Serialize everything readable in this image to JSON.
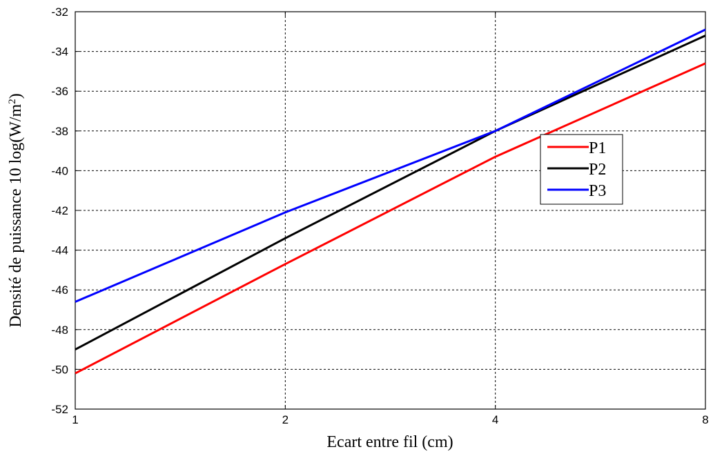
{
  "chart_data": {
    "type": "line",
    "x": [
      1,
      2,
      4,
      8
    ],
    "x_ticks": [
      "1",
      "2",
      "4",
      "8"
    ],
    "xlim": [
      1,
      8
    ],
    "xscale": "log",
    "ylim": [
      -52,
      -32
    ],
    "y_ticks": [
      "-52",
      "-50",
      "-48",
      "-46",
      "-44",
      "-42",
      "-40",
      "-38",
      "-36",
      "-34",
      "-32"
    ],
    "xlabel": "Ecart entre fil (cm)",
    "ylabel_main": "Densité de puissance 10 log(W/m",
    "ylabel_sup": "2",
    "ylabel_tail": ")",
    "grid": true,
    "legend_position": "right",
    "series": [
      {
        "name": "P1",
        "color": "#ff0000",
        "values": [
          -50.2,
          -44.7,
          -39.3,
          -34.6
        ]
      },
      {
        "name": "P2",
        "color": "#000000",
        "values": [
          -49.0,
          -43.4,
          -38.0,
          -33.2
        ]
      },
      {
        "name": "P3",
        "color": "#0000ff",
        "values": [
          -46.6,
          -42.1,
          -38.0,
          -32.9
        ]
      }
    ]
  }
}
